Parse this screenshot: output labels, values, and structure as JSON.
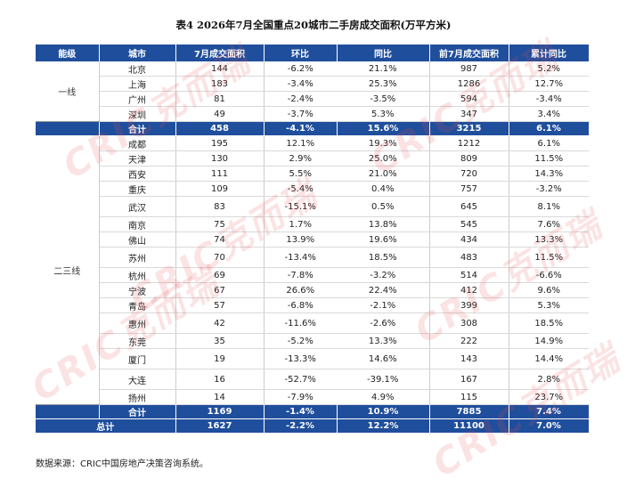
{
  "title": "表4  2026年7月全国重点20城市二手房成交面积(万平方米)",
  "headers": [
    "能级",
    "城市",
    "7月成交面积",
    "环比",
    "同比",
    "前7月成交面积",
    "累计同比"
  ],
  "groups": [
    {
      "tier": "一线",
      "rows": [
        {
          "city": "北京",
          "area": "144",
          "mom": "-6.2%",
          "yoy": "21.1%",
          "ytd": "987",
          "ytd_yoy": "5.2%"
        },
        {
          "city": "上海",
          "area": "183",
          "mom": "-3.4%",
          "yoy": "25.3%",
          "ytd": "1286",
          "ytd_yoy": "12.7%"
        },
        {
          "city": "广州",
          "area": "81",
          "mom": "-2.4%",
          "yoy": "-3.5%",
          "ytd": "594",
          "ytd_yoy": "-3.4%"
        },
        {
          "city": "深圳",
          "area": "49",
          "mom": "-3.7%",
          "yoy": "5.3%",
          "ytd": "347",
          "ytd_yoy": "3.4%"
        }
      ],
      "subtotal": {
        "label": "合计",
        "area": "458",
        "mom": "-4.1%",
        "yoy": "15.6%",
        "ytd": "3215",
        "ytd_yoy": "6.1%"
      }
    },
    {
      "tier": "二三线",
      "rows": [
        {
          "city": "成都",
          "area": "195",
          "mom": "12.1%",
          "yoy": "19.3%",
          "ytd": "1212",
          "ytd_yoy": "6.1%"
        },
        {
          "city": "天津",
          "area": "130",
          "mom": "2.9%",
          "yoy": "25.0%",
          "ytd": "809",
          "ytd_yoy": "11.5%"
        },
        {
          "city": "西安",
          "area": "111",
          "mom": "5.5%",
          "yoy": "21.0%",
          "ytd": "720",
          "ytd_yoy": "14.3%"
        },
        {
          "city": "重庆",
          "area": "109",
          "mom": "-5.4%",
          "yoy": "0.4%",
          "ytd": "757",
          "ytd_yoy": "-3.2%"
        },
        {
          "city": "武汉",
          "area": "83",
          "mom": "-15.1%",
          "yoy": "0.5%",
          "ytd": "645",
          "ytd_yoy": "8.1%"
        },
        {
          "city": "南京",
          "area": "75",
          "mom": "1.7%",
          "yoy": "13.8%",
          "ytd": "545",
          "ytd_yoy": "7.6%"
        },
        {
          "city": "佛山",
          "area": "74",
          "mom": "13.9%",
          "yoy": "19.6%",
          "ytd": "434",
          "ytd_yoy": "13.3%"
        },
        {
          "city": "苏州",
          "area": "70",
          "mom": "-13.4%",
          "yoy": "18.5%",
          "ytd": "483",
          "ytd_yoy": "11.5%"
        },
        {
          "city": "杭州",
          "area": "69",
          "mom": "-7.8%",
          "yoy": "-3.2%",
          "ytd": "514",
          "ytd_yoy": "-6.6%"
        },
        {
          "city": "宁波",
          "area": "67",
          "mom": "26.6%",
          "yoy": "22.4%",
          "ytd": "412",
          "ytd_yoy": "9.6%"
        },
        {
          "city": "青岛",
          "area": "57",
          "mom": "-6.8%",
          "yoy": "-2.1%",
          "ytd": "399",
          "ytd_yoy": "5.3%"
        },
        {
          "city": "惠州",
          "area": "42",
          "mom": "-11.6%",
          "yoy": "-2.6%",
          "ytd": "308",
          "ytd_yoy": "18.5%"
        },
        {
          "city": "东莞",
          "area": "35",
          "mom": "-5.2%",
          "yoy": "13.3%",
          "ytd": "222",
          "ytd_yoy": "14.9%"
        },
        {
          "city": "厦门",
          "area": "19",
          "mom": "-13.3%",
          "yoy": "14.6%",
          "ytd": "143",
          "ytd_yoy": "14.4%"
        },
        {
          "city": "大连",
          "area": "16",
          "mom": "-52.7%",
          "yoy": "-39.1%",
          "ytd": "167",
          "ytd_yoy": "2.8%"
        },
        {
          "city": "扬州",
          "area": "14",
          "mom": "-7.9%",
          "yoy": "4.9%",
          "ytd": "115",
          "ytd_yoy": "23.7%"
        }
      ],
      "subtotal": {
        "label": "合计",
        "area": "1169",
        "mom": "-1.4%",
        "yoy": "10.9%",
        "ytd": "7885",
        "ytd_yoy": "7.4%"
      }
    }
  ],
  "total": {
    "label": "总计",
    "area": "1627",
    "mom": "-2.2%",
    "yoy": "12.2%",
    "ytd": "11100",
    "ytd_yoy": "7.0%"
  },
  "source": "数据来源：CRIC中国房地产决策咨询系统。",
  "watermark": "CRIC克而瑞",
  "colors": {
    "header_bg": "#1f4e9c",
    "header_text": "#ffffff",
    "watermark": "#e6505a"
  }
}
